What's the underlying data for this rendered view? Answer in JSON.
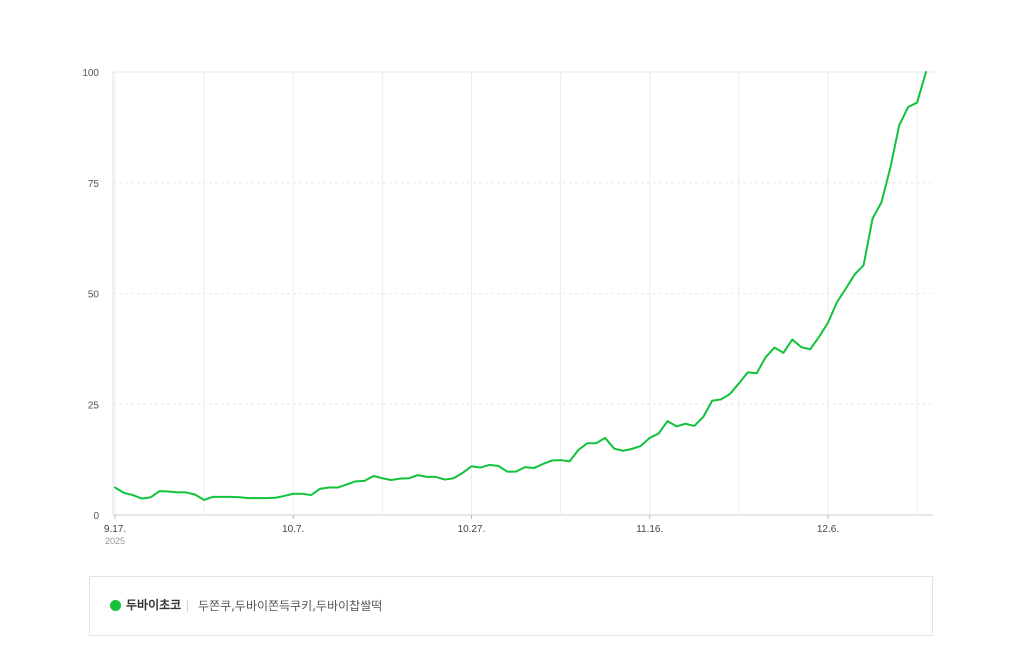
{
  "chart_data": {
    "type": "line",
    "y_ticks": [
      0,
      25,
      50,
      75,
      100
    ],
    "ylim": [
      0,
      100
    ],
    "x_tick_labels": [
      "9.17.",
      "10.7.",
      "10.27.",
      "11.16.",
      "12.6."
    ],
    "x_tick_index": [
      0,
      20,
      40,
      60,
      80
    ],
    "year_label": "2025",
    "grid": true,
    "series": [
      {
        "name": "두바이초코",
        "color": "#11c23a",
        "values": [
          6.2,
          5.0,
          4.5,
          3.7,
          4.0,
          5.4,
          5.3,
          5.1,
          5.1,
          4.6,
          3.4,
          4.1,
          4.1,
          4.1,
          4.0,
          3.8,
          3.8,
          3.8,
          3.9,
          4.3,
          4.8,
          4.8,
          4.5,
          5.9,
          6.2,
          6.2,
          6.9,
          7.6,
          7.7,
          8.8,
          8.3,
          7.9,
          8.2,
          8.3,
          9.0,
          8.6,
          8.6,
          8.0,
          8.3,
          9.5,
          11.0,
          10.7,
          11.3,
          11.1,
          9.8,
          9.8,
          10.8,
          10.6,
          11.5,
          12.3,
          12.4,
          12.1,
          14.7,
          16.2,
          16.2,
          17.4,
          15.0,
          14.5,
          14.9,
          15.6,
          17.4,
          18.4,
          21.2,
          20.0,
          20.6,
          20.1,
          22.1,
          25.8,
          26.1,
          27.3,
          29.7,
          32.2,
          32.0,
          35.6,
          37.8,
          36.6,
          39.6,
          37.9,
          37.4,
          40.2,
          43.4,
          48.0,
          51.1,
          54.3,
          56.4,
          66.9,
          70.6,
          78.4,
          88.0,
          92.1,
          93.1,
          100.0
        ]
      }
    ]
  },
  "legend": {
    "series_name": "두바이초코",
    "keywords": "두쫀쿠,두바이쫀득쿠키,두바이찹쌀떡"
  }
}
